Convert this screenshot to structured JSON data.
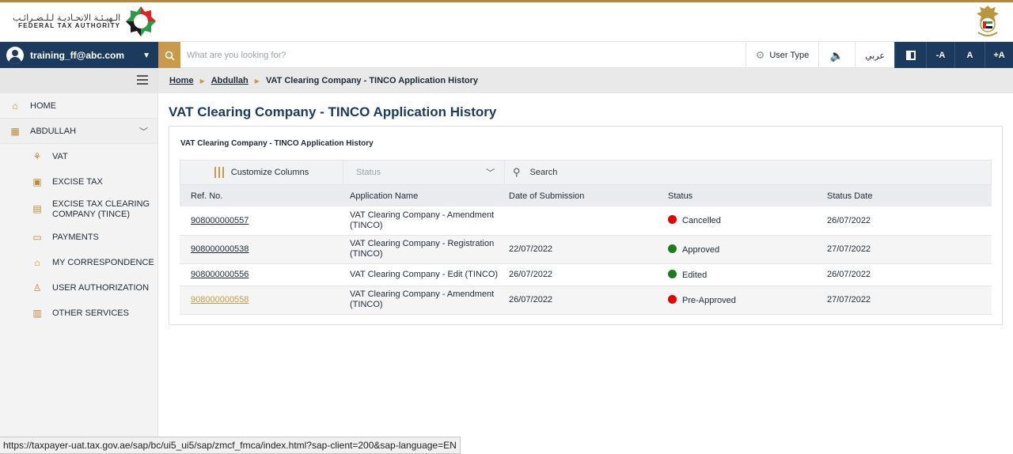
{
  "header": {
    "logo_arabic": "الـهيـئـة الاتحـاديـة لـلـضـرائـب",
    "logo_english": "FEDERAL TAX AUTHORITY"
  },
  "toolbar": {
    "user_email": "training_ff@abc.com",
    "search_placeholder": "What are you looking for?",
    "user_type_label": "User Type",
    "language_label": "عربي",
    "font_decrease": "-A",
    "font_normal": "A",
    "font_increase": "+A"
  },
  "sidebar": {
    "items": [
      {
        "label": "HOME",
        "icon": "home-icon"
      },
      {
        "label": "ABDULLAH",
        "icon": "grid-icon"
      },
      {
        "label": "VAT",
        "icon": "vat-icon"
      },
      {
        "label": "EXCISE TAX",
        "icon": "excise-icon"
      },
      {
        "label": "EXCISE TAX CLEARING COMPANY (TINCE)",
        "icon": "clearing-icon"
      },
      {
        "label": "PAYMENTS",
        "icon": "payments-icon"
      },
      {
        "label": "MY CORRESPONDENCE",
        "icon": "correspondence-icon"
      },
      {
        "label": "USER AUTHORIZATION",
        "icon": "user-auth-icon"
      },
      {
        "label": "OTHER SERVICES",
        "icon": "services-icon"
      }
    ]
  },
  "breadcrumb": {
    "home": "Home",
    "parent": "Abdullah",
    "current": "VAT Clearing Company - TINCO Application History"
  },
  "page": {
    "title": "VAT Clearing Company - TINCO Application History",
    "panel_title": "VAT Clearing Company - TINCO Application History"
  },
  "filters": {
    "customize_label": "Customize Columns",
    "status_placeholder": "Status",
    "search_placeholder": "Search"
  },
  "table": {
    "columns": [
      "Ref. No.",
      "Application Name",
      "Date of Submission",
      "Status",
      "Status Date"
    ],
    "rows": [
      {
        "ref": "908000000557",
        "name": "VAT Clearing Company - Amendment (TINCO)",
        "date": "",
        "status": "Cancelled",
        "status_color": "#e60000",
        "status_date": "26/07/2022"
      },
      {
        "ref": "908000000538",
        "name": "VAT Clearing Company - Registration (TINCO)",
        "date": "22/07/2022",
        "status": "Approved",
        "status_color": "#1e7b1e",
        "status_date": "27/07/2022"
      },
      {
        "ref": "908000000556",
        "name": "VAT Clearing Company - Edit (TINCO)",
        "date": "26/07/2022",
        "status": "Edited",
        "status_color": "#1e7b1e",
        "status_date": "26/07/2022"
      },
      {
        "ref": "908000000558",
        "name": "VAT Clearing Company - Amendment (TINCO)",
        "date": "26/07/2022",
        "status": "Pre-Approved",
        "status_color": "#e60000",
        "status_date": "27/07/2022"
      }
    ]
  },
  "statusbar": {
    "url": "https://taxpayer-uat.tax.gov.ae/sap/bc/ui5_ui5/sap/zmcf_fmca/index.html?sap-client=200&sap-language=EN"
  },
  "colors": {
    "navy": "#1c3a5e",
    "gold": "#c79a4c",
    "cancelled": "#e60000",
    "approved": "#1e7b1e"
  }
}
